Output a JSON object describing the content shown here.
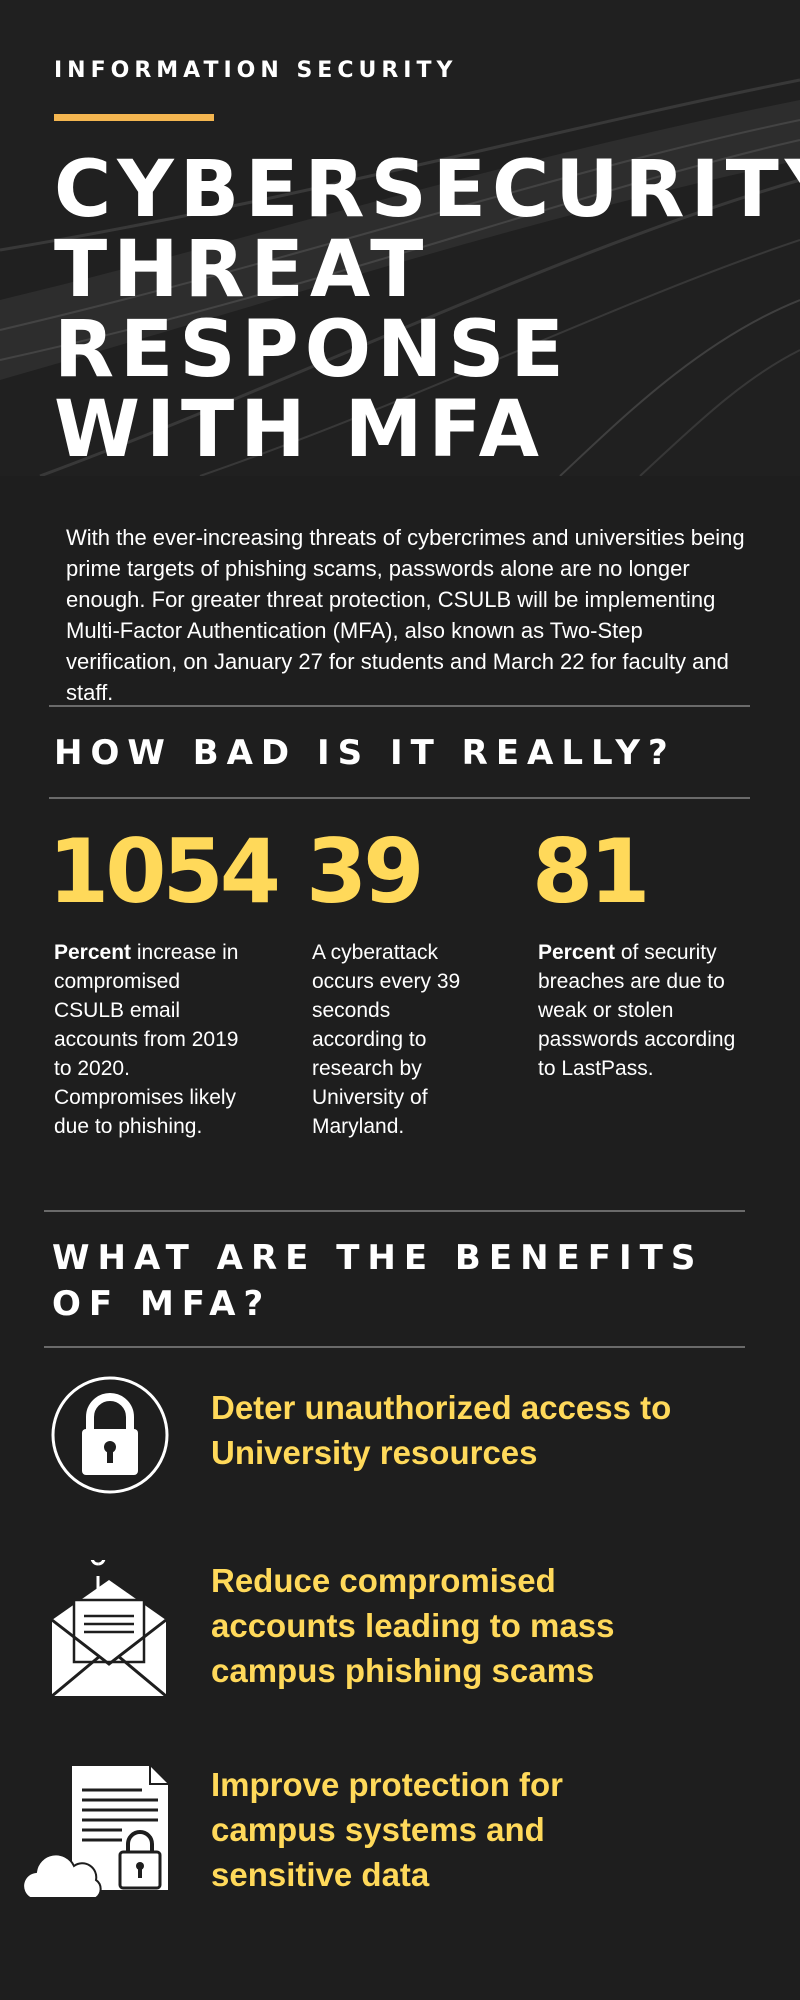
{
  "header": {
    "eyebrow": "INFORMATION SECURITY",
    "title_lines": [
      "CYBERSECURITY",
      "THREAT",
      "RESPONSE",
      "WITH MFA"
    ]
  },
  "intro": "With the ever-increasing threats of cybercrimes and universities being prime targets of phishing scams, passwords alone are no longer enough.  For greater threat protection, CSULB will be implementing Multi-Factor Authentication (MFA), also known as Two-Step verification, on January 27 for students and March 22 for faculty and staff.",
  "stats_section": {
    "heading": "HOW BAD IS IT REALLY?",
    "stats": [
      {
        "number": "1054",
        "bold": "Percent",
        "text": " increase in  compromised CSULB email accounts from 2019 to 2020. Compromises likely due to phishing."
      },
      {
        "number": "39",
        "bold": "",
        "text": "A cyberattack occurs every 39 seconds according to research by University of Maryland."
      },
      {
        "number": "81",
        "bold": "Percent",
        "text": " of security breaches are due to weak or stolen passwords according to LastPass."
      }
    ]
  },
  "benefits_section": {
    "heading": "WHAT ARE THE BENEFITS OF MFA?",
    "items": [
      {
        "icon": "padlock-icon",
        "text": "Deter unauthorized access to University resources"
      },
      {
        "icon": "phishing-envelope-icon",
        "text": "Reduce compromised accounts leading to mass campus phishing scams"
      },
      {
        "icon": "secure-document-cloud-icon",
        "text": "Improve protection for campus systems and sensitive data"
      }
    ]
  },
  "colors": {
    "background": "#1e1e1e",
    "accent_yellow": "#ffd95a",
    "accent_orange": "#f4b650",
    "rule": "#6a6a6a"
  }
}
